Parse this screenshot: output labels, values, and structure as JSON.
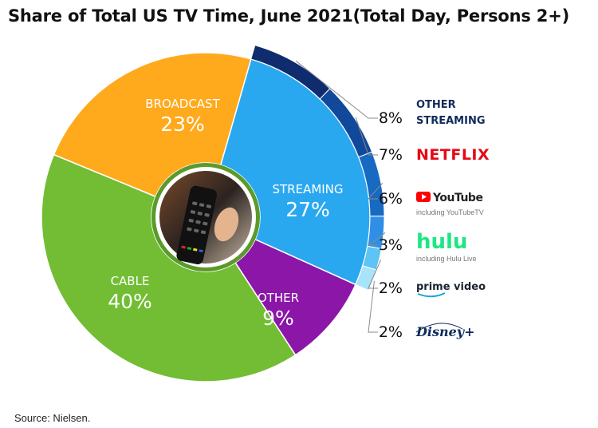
{
  "title": "Share of Total US TV Time, June 2021(Total Day, Persons 2+)",
  "source": "Source: Nielsen.",
  "colors": {
    "streaming": "#29a8f0",
    "other": "#8b16a8",
    "cable": "#72bd33",
    "broadcast": "#ffa91c"
  },
  "chart_data": {
    "type": "pie",
    "title": "Share of Total US TV Time, June 2021(Total Day, Persons 2+)",
    "slices": [
      {
        "name": "STREAMING",
        "value": 27,
        "label": "27%",
        "color": "#29a8f0"
      },
      {
        "name": "OTHER",
        "value": 9,
        "label": "9%",
        "color": "#8b16a8"
      },
      {
        "name": "CABLE",
        "value": 40,
        "label": "40%",
        "color": "#72bd33"
      },
      {
        "name": "BROADCAST",
        "value": 23,
        "label": "23%",
        "color": "#ffa91c"
      }
    ],
    "streaming_breakdown": [
      {
        "name": "OTHER STREAMING",
        "value": 8,
        "label": "8%",
        "color": "#0f2c6e"
      },
      {
        "name": "NETFLIX",
        "value": 7,
        "label": "7%",
        "color": "#12489a"
      },
      {
        "name": "YouTube",
        "sub": "including YouTubeTV",
        "value": 6,
        "label": "6%",
        "color": "#1769c2"
      },
      {
        "name": "hulu",
        "sub": "including Hulu Live",
        "value": 3,
        "label": "3%",
        "color": "#2f8fe6"
      },
      {
        "name": "prime video",
        "value": 2,
        "label": "2%",
        "color": "#5ec3f5"
      },
      {
        "name": "Disney+",
        "value": 2,
        "label": "2%",
        "color": "#a7e3fb"
      }
    ]
  }
}
